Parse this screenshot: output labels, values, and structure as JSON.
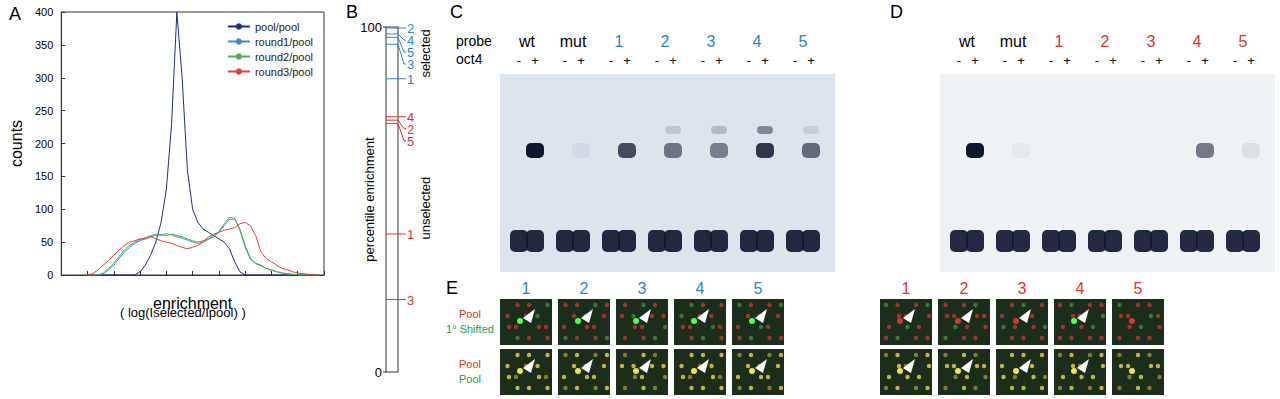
{
  "chart_data": {
    "type": "line",
    "title": "A",
    "x_label": "enrichment",
    "y_label": "counts",
    "annotations": [
      "( log(Iselected/Ipool) )"
    ],
    "x": [
      10,
      12,
      14,
      16,
      18,
      20,
      22,
      24,
      26,
      28,
      30,
      32,
      34,
      36,
      38,
      40,
      42,
      44,
      46,
      48,
      50,
      52,
      54,
      56,
      58,
      60,
      62,
      64,
      66,
      68,
      70,
      72,
      74,
      76,
      78,
      80,
      82,
      84,
      86,
      88,
      90,
      92,
      94,
      96,
      98
    ],
    "series": [
      {
        "name": "pool/pool",
        "color": "#1f2f7a",
        "values": [
          0,
          0,
          0,
          0,
          0,
          0,
          0,
          0,
          0,
          0,
          5,
          15,
          30,
          50,
          80,
          130,
          230,
          400,
          300,
          160,
          100,
          80,
          70,
          65,
          60,
          55,
          50,
          40,
          20,
          5,
          0,
          0,
          0,
          0,
          0,
          0,
          0,
          0,
          0,
          0,
          0,
          0,
          0,
          0,
          0
        ]
      },
      {
        "name": "round1/pool",
        "color": "#3a8fc0",
        "values": [
          0,
          0,
          0,
          2,
          8,
          15,
          25,
          35,
          42,
          48,
          52,
          55,
          58,
          60,
          62,
          60,
          62,
          60,
          58,
          55,
          52,
          50,
          52,
          55,
          60,
          65,
          75,
          85,
          85,
          70,
          45,
          25,
          18,
          15,
          10,
          8,
          5,
          3,
          2,
          1,
          0,
          0,
          0,
          0,
          0
        ]
      },
      {
        "name": "round2/pool",
        "color": "#4caf50",
        "values": [
          0,
          0,
          0,
          3,
          10,
          18,
          28,
          38,
          45,
          50,
          54,
          57,
          60,
          62,
          60,
          63,
          61,
          58,
          56,
          53,
          50,
          48,
          50,
          54,
          58,
          66,
          78,
          88,
          86,
          68,
          42,
          24,
          17,
          14,
          10,
          7,
          5,
          3,
          2,
          1,
          0,
          0,
          0,
          0,
          0
        ]
      },
      {
        "name": "round3/pool",
        "color": "#e04040",
        "values": [
          0,
          2,
          8,
          15,
          22,
          30,
          38,
          45,
          50,
          52,
          55,
          55,
          58,
          55,
          52,
          50,
          48,
          45,
          42,
          40,
          42,
          45,
          50,
          58,
          62,
          65,
          68,
          70,
          72,
          78,
          80,
          75,
          60,
          35,
          25,
          20,
          15,
          10,
          8,
          5,
          3,
          2,
          1,
          0,
          0
        ]
      }
    ],
    "xlim": [
      0,
      100
    ],
    "xticks": [
      0,
      10,
      20,
      30,
      40,
      50,
      60,
      70,
      80,
      90,
      100
    ],
    "ylim": [
      0,
      400
    ],
    "yticks": [
      0,
      50,
      100,
      150,
      200,
      250,
      300,
      350,
      400
    ],
    "grid": false,
    "legend": "upper right",
    "tick_labels": "y"
  },
  "panels": {
    "B": {
      "label": "B",
      "axis_label": "percentile enrichment",
      "range": [
        0,
        100
      ],
      "ticks": [
        0,
        100
      ],
      "groups": [
        {
          "name": "selected",
          "color": "#2a86c8",
          "marks": [
            {
              "label": "2",
              "value": 99.7
            },
            {
              "label": "4",
              "value": 98
            },
            {
              "label": "5",
              "value": 97
            },
            {
              "label": "3",
              "value": 95
            },
            {
              "label": "1",
              "value": 85
            }
          ]
        },
        {
          "name": "unselected",
          "color": "#e0302a",
          "marks": [
            {
              "label": "4",
              "value": 74
            },
            {
              "label": "2",
              "value": 73
            },
            {
              "label": "5",
              "value": 72
            },
            {
              "label": "1",
              "value": 40
            },
            {
              "label": "3",
              "value": 21
            }
          ]
        }
      ]
    },
    "C": {
      "label": "C",
      "row_labels": [
        "probe",
        "oct4"
      ],
      "lane_signs": [
        "-",
        "+"
      ],
      "probes": [
        {
          "label": "wt",
          "color": "#000000"
        },
        {
          "label": "mut",
          "color": "#000000"
        },
        {
          "label": "1",
          "color": "#2a86c8"
        },
        {
          "label": "2",
          "color": "#2a86c8"
        },
        {
          "label": "3",
          "color": "#2a86c8"
        },
        {
          "label": "4",
          "color": "#2a86c8"
        },
        {
          "label": "5",
          "color": "#2a86c8"
        }
      ],
      "shifted_band": [
        1.0,
        0.05,
        0.75,
        0.55,
        0.5,
        0.85,
        0.6
      ],
      "upper_band": [
        0,
        0,
        0,
        0.15,
        0.2,
        0.45,
        0.1
      ]
    },
    "D": {
      "label": "D",
      "row_labels": [],
      "lane_signs": [
        "-",
        "+"
      ],
      "probes": [
        {
          "label": "wt",
          "color": "#000000"
        },
        {
          "label": "mut",
          "color": "#000000"
        },
        {
          "label": "1",
          "color": "#e0302a"
        },
        {
          "label": "2",
          "color": "#e0302a"
        },
        {
          "label": "3",
          "color": "#e0302a"
        },
        {
          "label": "4",
          "color": "#e0302a"
        },
        {
          "label": "5",
          "color": "#e0302a"
        }
      ],
      "shifted_band": [
        1.0,
        0.04,
        0,
        0,
        0,
        0.55,
        0.08
      ],
      "upper_band": [
        0,
        0,
        0,
        0,
        0,
        0,
        0
      ]
    },
    "E": {
      "label": "E",
      "row_labels": [
        [
          {
            "text": "Pool",
            "color": "#e0302a"
          },
          {
            "text": "1° Shifted",
            "color": "#2a9a3a"
          }
        ],
        [
          {
            "text": "Pool",
            "color": "#e0302a"
          },
          {
            "text": "Pool",
            "color": "#2a9a3a"
          }
        ]
      ],
      "groups": [
        {
          "color": "#2a86c8",
          "tiles": [
            "1",
            "2",
            "3",
            "4",
            "5"
          ]
        },
        {
          "color": "#e0302a",
          "tiles": [
            "1",
            "2",
            "3",
            "4",
            "5"
          ]
        }
      ]
    }
  }
}
